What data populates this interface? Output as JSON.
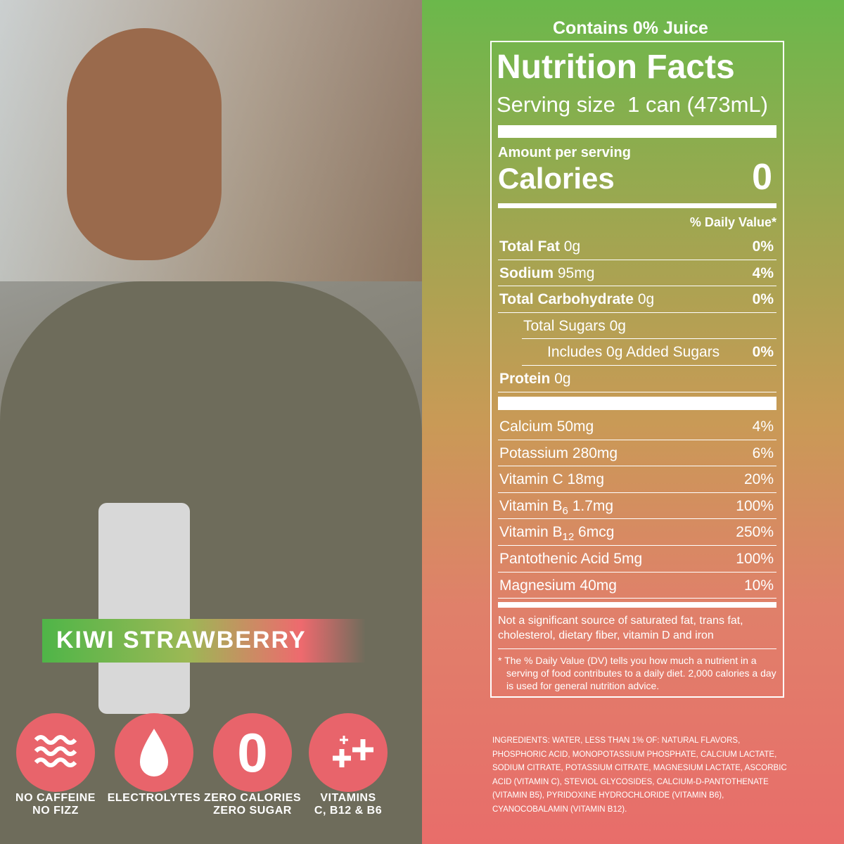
{
  "badge": {
    "flavor": "KIWI STRAWBERRY"
  },
  "icons": [
    {
      "line1": "NO CAFFEINE",
      "line2": "NO FIZZ"
    },
    {
      "line1": "ELECTROLYTES"
    },
    {
      "symbol": "0",
      "line1": "ZERO CALORIES",
      "line2": "ZERO SUGAR"
    },
    {
      "line1": "VITAMINS",
      "line2": "C, B12 & B6"
    }
  ],
  "label": {
    "juice": "Contains 0% Juice",
    "title": "Nutrition Facts",
    "serving_label": "Serving size",
    "serving_value": "1 can (473mL)",
    "amount_per_serving": "Amount per serving",
    "calories_label": "Calories",
    "calories_value": "0",
    "dv_header": "% Daily Value*",
    "nutrients": [
      {
        "name": "Total Fat",
        "amount": "0g",
        "dv": "0%"
      },
      {
        "name": "Sodium",
        "amount": "95mg",
        "dv": "4%"
      },
      {
        "name": "Total Carbohydrate",
        "amount": "0g",
        "dv": "0%",
        "sub": [
          {
            "name": "Total Sugars",
            "amount": "0g",
            "sub": [
              {
                "name": "Includes 0g Added Sugars",
                "dv": "0%"
              }
            ]
          }
        ]
      },
      {
        "name": "Protein",
        "amount": "0g"
      }
    ],
    "vitamins": [
      {
        "name": "Calcium",
        "amount": "50mg",
        "dv": "4%"
      },
      {
        "name": "Potassium",
        "amount": "280mg",
        "dv": "6%"
      },
      {
        "name": "Vitamin C",
        "amount": "18mg",
        "dv": "20%"
      },
      {
        "name": "Vitamin B",
        "subscript": "6",
        "amount": "1.7mg",
        "dv": "100%"
      },
      {
        "name": "Vitamin B",
        "subscript": "12",
        "amount": "6mcg",
        "dv": "250%"
      },
      {
        "name": "Pantothenic Acid",
        "amount": "5mg",
        "dv": "100%"
      },
      {
        "name": "Magnesium",
        "amount": "40mg",
        "dv": "10%"
      }
    ],
    "note": "Not a significant source of saturated fat, trans fat, cholesterol, dietary fiber, vitamin D and iron",
    "footnote": "* The % Daily Value (DV) tells you how much a nutrient in a serving of food contributes to a daily diet. 2,000 calories a day is used for general nutrition advice."
  },
  "ingredients": "INGREDIENTS: WATER, LESS THAN 1% OF: NATURAL FLAVORS, PHOSPHORIC ACID, MONOPOTASSIUM PHOSPHATE, CALCIUM LACTATE, SODIUM CITRATE, POTASSIUM CITRATE, MAGNESIUM LACTATE, ASCORBIC ACID (VITAMIN C), STEVIOL GLYCOSIDES, CALCIUM-D-PANTOTHENATE (VITAMIN B5), PYRIDOXINE HYDROCHLORIDE (VITAMIN B6), CYANOCOBALAMIN (VITAMIN B12)."
}
